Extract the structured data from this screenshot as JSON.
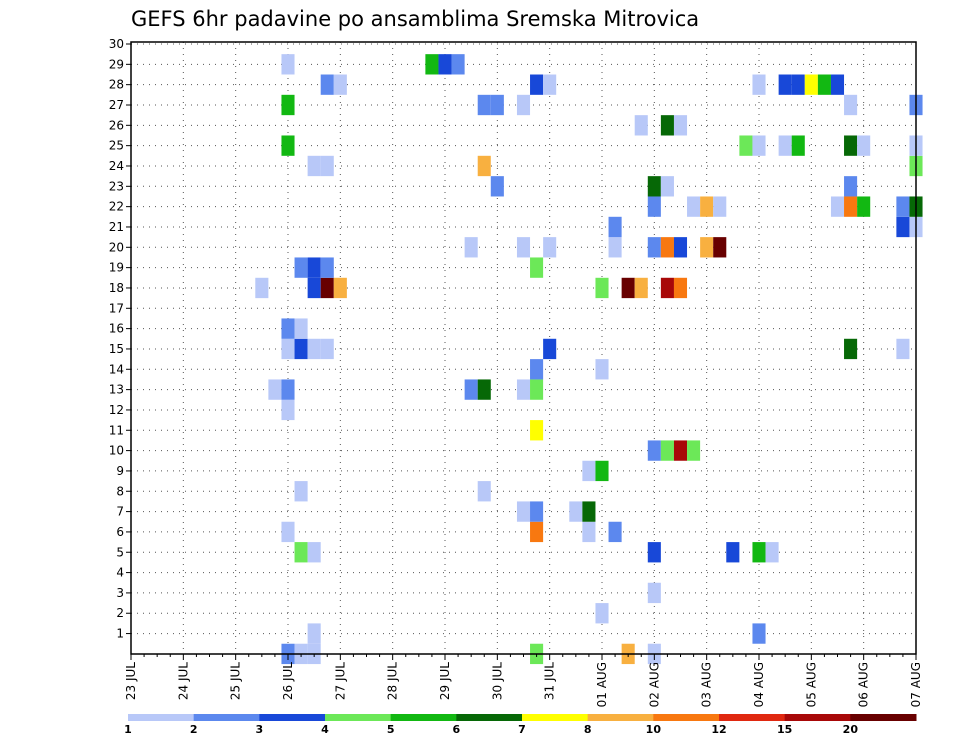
{
  "chart_data": {
    "type": "heatmap",
    "title": "GEFS 6hr padavine po ansamblima Sremska Mitrovica",
    "x_tick_labels": [
      "23 JUL",
      "24 JUL",
      "25 JUL",
      "26 JUL",
      "27 JUL",
      "28 JUL",
      "29 JUL",
      "30 JUL",
      "31 JUL",
      "01 AUG",
      "02 AUG",
      "03 AUG",
      "04 AUG",
      "05 AUG",
      "06 AUG",
      "07 AUG"
    ],
    "x_range_days": [
      0,
      15
    ],
    "y_tick_labels": [
      "1",
      "2",
      "3",
      "4",
      "5",
      "6",
      "7",
      "8",
      "9",
      "10",
      "11",
      "12",
      "13",
      "14",
      "15",
      "16",
      "17",
      "18",
      "19",
      "20",
      "21",
      "22",
      "23",
      "24",
      "25",
      "26",
      "27",
      "28",
      "29",
      "30"
    ],
    "y_range": [
      0,
      30
    ],
    "grid": true,
    "colorbar": {
      "ticks": [
        "1",
        "2",
        "3",
        "4",
        "5",
        "6",
        "7",
        "8",
        "10",
        "12",
        "15",
        "20"
      ],
      "colors": [
        "#b8c8f8",
        "#5c88ee",
        "#1848d8",
        "#6ce858",
        "#12b812",
        "#066806",
        "#ffff00",
        "#f8b040",
        "#f87810",
        "#e02810",
        "#a80808",
        "#680000"
      ]
    },
    "cells": [
      {
        "day": 3.0,
        "member": 0,
        "level": 2
      },
      {
        "day": 3.25,
        "member": 0,
        "level": 1
      },
      {
        "day": 3.5,
        "member": 0,
        "level": 1
      },
      {
        "day": 7.75,
        "member": 0,
        "level": 4
      },
      {
        "day": 9.5,
        "member": 0,
        "level": 8
      },
      {
        "day": 10.0,
        "member": 0,
        "level": 1
      },
      {
        "day": 3.5,
        "member": 1,
        "level": 1
      },
      {
        "day": 12.0,
        "member": 1,
        "level": 2
      },
      {
        "day": 9.0,
        "member": 2,
        "level": 1
      },
      {
        "day": 10.0,
        "member": 3,
        "level": 1
      },
      {
        "day": 3.25,
        "member": 5,
        "level": 4
      },
      {
        "day": 3.5,
        "member": 5,
        "level": 1
      },
      {
        "day": 10.0,
        "member": 5,
        "level": 3
      },
      {
        "day": 11.5,
        "member": 5,
        "level": 3
      },
      {
        "day": 12.0,
        "member": 5,
        "level": 5
      },
      {
        "day": 12.25,
        "member": 5,
        "level": 1
      },
      {
        "day": 3.0,
        "member": 6,
        "level": 1
      },
      {
        "day": 7.75,
        "member": 6,
        "level": 9
      },
      {
        "day": 8.75,
        "member": 6,
        "level": 1
      },
      {
        "day": 9.25,
        "member": 6,
        "level": 2
      },
      {
        "day": 7.5,
        "member": 7,
        "level": 1
      },
      {
        "day": 7.75,
        "member": 7,
        "level": 2
      },
      {
        "day": 8.5,
        "member": 7,
        "level": 1
      },
      {
        "day": 8.75,
        "member": 7,
        "level": 6
      },
      {
        "day": 3.25,
        "member": 8,
        "level": 1
      },
      {
        "day": 6.75,
        "member": 8,
        "level": 1
      },
      {
        "day": 8.75,
        "member": 9,
        "level": 1
      },
      {
        "day": 9.0,
        "member": 9,
        "level": 5
      },
      {
        "day": 10.0,
        "member": 10,
        "level": 2
      },
      {
        "day": 10.25,
        "member": 10,
        "level": 4
      },
      {
        "day": 10.5,
        "member": 10,
        "level": 11
      },
      {
        "day": 10.75,
        "member": 10,
        "level": 4
      },
      {
        "day": 7.75,
        "member": 11,
        "level": 7
      },
      {
        "day": 3.0,
        "member": 12,
        "level": 1
      },
      {
        "day": 2.75,
        "member": 13,
        "level": 1
      },
      {
        "day": 3.0,
        "member": 13,
        "level": 2
      },
      {
        "day": 6.5,
        "member": 13,
        "level": 2
      },
      {
        "day": 6.75,
        "member": 13,
        "level": 6
      },
      {
        "day": 7.5,
        "member": 13,
        "level": 1
      },
      {
        "day": 7.75,
        "member": 13,
        "level": 4
      },
      {
        "day": 7.75,
        "member": 14,
        "level": 2
      },
      {
        "day": 9.0,
        "member": 14,
        "level": 1
      },
      {
        "day": 3.0,
        "member": 15,
        "level": 1
      },
      {
        "day": 3.25,
        "member": 15,
        "level": 3
      },
      {
        "day": 3.5,
        "member": 15,
        "level": 1
      },
      {
        "day": 3.75,
        "member": 15,
        "level": 1
      },
      {
        "day": 8.0,
        "member": 15,
        "level": 3
      },
      {
        "day": 13.75,
        "member": 15,
        "level": 6
      },
      {
        "day": 14.75,
        "member": 15,
        "level": 1
      },
      {
        "day": 3.0,
        "member": 16,
        "level": 2
      },
      {
        "day": 3.25,
        "member": 16,
        "level": 1
      },
      {
        "day": 2.5,
        "member": 18,
        "level": 1
      },
      {
        "day": 3.5,
        "member": 18,
        "level": 3
      },
      {
        "day": 3.75,
        "member": 18,
        "level": 12
      },
      {
        "day": 4.0,
        "member": 18,
        "level": 8
      },
      {
        "day": 9.0,
        "member": 18,
        "level": 4
      },
      {
        "day": 9.5,
        "member": 18,
        "level": 12
      },
      {
        "day": 9.75,
        "member": 18,
        "level": 8
      },
      {
        "day": 10.25,
        "member": 18,
        "level": 11
      },
      {
        "day": 10.5,
        "member": 18,
        "level": 9
      },
      {
        "day": 3.25,
        "member": 19,
        "level": 2
      },
      {
        "day": 3.5,
        "member": 19,
        "level": 3
      },
      {
        "day": 3.75,
        "member": 19,
        "level": 2
      },
      {
        "day": 7.75,
        "member": 19,
        "level": 4
      },
      {
        "day": 6.5,
        "member": 20,
        "level": 1
      },
      {
        "day": 7.5,
        "member": 20,
        "level": 1
      },
      {
        "day": 8.0,
        "member": 20,
        "level": 1
      },
      {
        "day": 9.25,
        "member": 20,
        "level": 1
      },
      {
        "day": 10.0,
        "member": 20,
        "level": 2
      },
      {
        "day": 10.25,
        "member": 20,
        "level": 9
      },
      {
        "day": 10.5,
        "member": 20,
        "level": 3
      },
      {
        "day": 11.0,
        "member": 20,
        "level": 8
      },
      {
        "day": 11.25,
        "member": 20,
        "level": 12
      },
      {
        "day": 9.25,
        "member": 21,
        "level": 2
      },
      {
        "day": 14.75,
        "member": 21,
        "level": 3
      },
      {
        "day": 15.0,
        "member": 21,
        "level": 1
      },
      {
        "day": 10.0,
        "member": 22,
        "level": 2
      },
      {
        "day": 10.75,
        "member": 22,
        "level": 1
      },
      {
        "day": 11.0,
        "member": 22,
        "level": 8
      },
      {
        "day": 11.25,
        "member": 22,
        "level": 1
      },
      {
        "day": 13.5,
        "member": 22,
        "level": 1
      },
      {
        "day": 13.75,
        "member": 22,
        "level": 9
      },
      {
        "day": 14.0,
        "member": 22,
        "level": 5
      },
      {
        "day": 14.75,
        "member": 22,
        "level": 2
      },
      {
        "day": 15.0,
        "member": 22,
        "level": 6
      },
      {
        "day": 7.0,
        "member": 23,
        "level": 2
      },
      {
        "day": 10.0,
        "member": 23,
        "level": 6
      },
      {
        "day": 10.25,
        "member": 23,
        "level": 1
      },
      {
        "day": 13.75,
        "member": 23,
        "level": 2
      },
      {
        "day": 3.5,
        "member": 24,
        "level": 1
      },
      {
        "day": 3.75,
        "member": 24,
        "level": 1
      },
      {
        "day": 6.75,
        "member": 24,
        "level": 8
      },
      {
        "day": 15.0,
        "member": 24,
        "level": 4
      },
      {
        "day": 3.0,
        "member": 25,
        "level": 5
      },
      {
        "day": 11.75,
        "member": 25,
        "level": 4
      },
      {
        "day": 12.0,
        "member": 25,
        "level": 1
      },
      {
        "day": 12.5,
        "member": 25,
        "level": 1
      },
      {
        "day": 12.75,
        "member": 25,
        "level": 5
      },
      {
        "day": 13.75,
        "member": 25,
        "level": 6
      },
      {
        "day": 14.0,
        "member": 25,
        "level": 1
      },
      {
        "day": 15.0,
        "member": 25,
        "level": 1
      },
      {
        "day": 9.75,
        "member": 26,
        "level": 1
      },
      {
        "day": 10.25,
        "member": 26,
        "level": 6
      },
      {
        "day": 10.5,
        "member": 26,
        "level": 1
      },
      {
        "day": 3.0,
        "member": 27,
        "level": 5
      },
      {
        "day": 6.75,
        "member": 27,
        "level": 2
      },
      {
        "day": 7.0,
        "member": 27,
        "level": 2
      },
      {
        "day": 7.5,
        "member": 27,
        "level": 1
      },
      {
        "day": 13.75,
        "member": 27,
        "level": 1
      },
      {
        "day": 15.0,
        "member": 27,
        "level": 2
      },
      {
        "day": 3.75,
        "member": 28,
        "level": 2
      },
      {
        "day": 4.0,
        "member": 28,
        "level": 1
      },
      {
        "day": 7.75,
        "member": 28,
        "level": 3
      },
      {
        "day": 8.0,
        "member": 28,
        "level": 1
      },
      {
        "day": 12.0,
        "member": 28,
        "level": 1
      },
      {
        "day": 12.5,
        "member": 28,
        "level": 3
      },
      {
        "day": 12.75,
        "member": 28,
        "level": 3
      },
      {
        "day": 13.0,
        "member": 28,
        "level": 7
      },
      {
        "day": 13.25,
        "member": 28,
        "level": 5
      },
      {
        "day": 13.5,
        "member": 28,
        "level": 3
      },
      {
        "day": 3.0,
        "member": 29,
        "level": 1
      },
      {
        "day": 5.75,
        "member": 29,
        "level": 5
      },
      {
        "day": 6.0,
        "member": 29,
        "level": 3
      },
      {
        "day": 6.25,
        "member": 29,
        "level": 2
      }
    ]
  }
}
